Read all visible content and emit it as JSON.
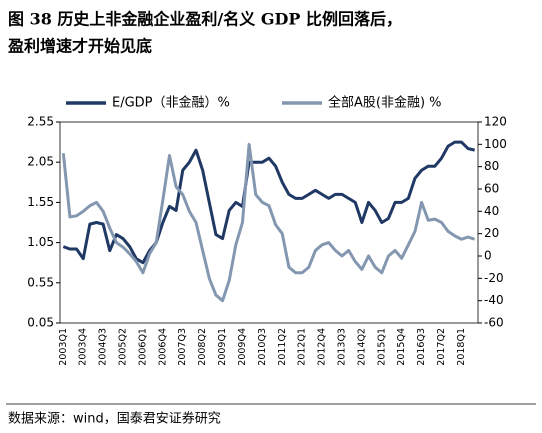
{
  "chart_data": {
    "type": "line",
    "title": [
      "图 38  历史上非金融企业盈利/名义 GDP 比例回落后，",
      "盈利增速才开始见底"
    ],
    "source": "数据来源：wind，国泰君安证券研究",
    "categories": [
      "2003Q1",
      null,
      null,
      "2003Q4",
      null,
      null,
      "2004Q3",
      null,
      null,
      "2005Q2",
      null,
      null,
      "2006Q1",
      null,
      null,
      "2006Q4",
      null,
      null,
      "2007Q3",
      null,
      null,
      "2008Q2",
      null,
      null,
      "2009Q1",
      null,
      null,
      "2009Q4",
      null,
      null,
      "2010Q3",
      null,
      null,
      "2011Q2",
      null,
      null,
      "2012Q1",
      null,
      null,
      "2012Q4",
      null,
      null,
      "2013Q3",
      null,
      null,
      "2014Q2",
      null,
      null,
      "2015Q1",
      null,
      null,
      "2015Q4",
      null,
      null,
      "2016Q3",
      null,
      null,
      "2017Q2",
      null,
      null,
      "2018Q1",
      null,
      null
    ],
    "series": [
      {
        "name": "E/GDP（非金融）%",
        "color": "#1f3864",
        "axis": "y",
        "values": [
          1.0,
          0.97,
          0.97,
          0.85,
          1.28,
          1.3,
          1.28,
          0.95,
          1.15,
          1.1,
          1.0,
          0.85,
          0.8,
          0.95,
          1.05,
          1.3,
          1.5,
          1.45,
          1.95,
          2.05,
          2.2,
          1.95,
          1.55,
          1.15,
          1.1,
          1.45,
          1.55,
          1.5,
          2.05,
          2.05,
          2.05,
          2.1,
          2.0,
          1.8,
          1.65,
          1.6,
          1.6,
          1.65,
          1.7,
          1.65,
          1.6,
          1.65,
          1.65,
          1.6,
          1.55,
          1.3,
          1.55,
          1.45,
          1.3,
          1.35,
          1.55,
          1.55,
          1.6,
          1.85,
          1.95,
          2.0,
          2.0,
          2.1,
          2.25,
          2.3,
          2.3,
          2.22,
          2.2
        ]
      },
      {
        "name": "全部A股(非金融) %",
        "color": "#8497b0",
        "axis": "y2",
        "values": [
          92,
          35,
          36,
          40,
          45,
          48,
          40,
          25,
          12,
          8,
          2,
          -5,
          -15,
          2,
          12,
          50,
          90,
          62,
          55,
          40,
          30,
          5,
          -20,
          -35,
          -40,
          -22,
          10,
          30,
          100,
          55,
          48,
          45,
          28,
          20,
          -10,
          -15,
          -15,
          -10,
          5,
          10,
          12,
          5,
          0,
          5,
          -5,
          -12,
          0,
          -10,
          -15,
          0,
          5,
          -2,
          10,
          22,
          48,
          32,
          33,
          30,
          22,
          18,
          15,
          17,
          15
        ]
      }
    ],
    "ylim": [
      0.05,
      2.55
    ],
    "yticks": [
      0.05,
      0.55,
      1.05,
      1.55,
      2.05,
      2.55
    ],
    "y2lim": [
      -60,
      120
    ],
    "y2ticks": [
      -60,
      -40,
      -20,
      0,
      20,
      40,
      60,
      80,
      100,
      120
    ]
  }
}
